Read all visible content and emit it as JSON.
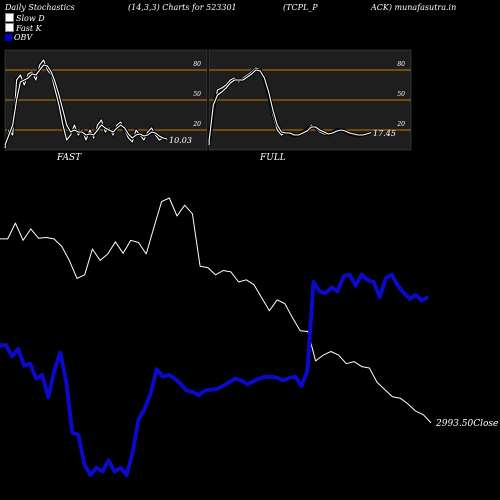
{
  "header": {
    "title": "Daily Stochastics",
    "params": "(14,3,3) Charts for 523301",
    "symbol_a": "(TCPL_P",
    "symbol_b": "ACK) munafasutra.in"
  },
  "legend": [
    {
      "label": "Slow  D",
      "color": "#ffffff"
    },
    {
      "label": "Fast K",
      "color": "#ffffff"
    },
    {
      "label": "OBV",
      "color": "#0000cc"
    }
  ],
  "colors": {
    "background": "#000000",
    "panel": "#1e1e1e",
    "ref_line": "#c87800",
    "price": "#ffffff",
    "obv": "#0a0ac8"
  },
  "chart_data": [
    {
      "type": "line",
      "title": "FAST",
      "ylim": [
        0,
        100
      ],
      "ticks": [
        20,
        50,
        80
      ],
      "ref_lines": [
        20,
        50,
        80
      ],
      "last_value_label": "10.03",
      "series": [
        {
          "name": "Fast K",
          "values": [
            2,
            20,
            15,
            70,
            75,
            65,
            76,
            78,
            70,
            85,
            90,
            80,
            75,
            60,
            45,
            25,
            10,
            15,
            25,
            15,
            20,
            10,
            20,
            12,
            25,
            30,
            18,
            22,
            15,
            25,
            28,
            20,
            12,
            8,
            20,
            15,
            10,
            18,
            22,
            15,
            10,
            12,
            10
          ]
        },
        {
          "name": "Slow  D",
          "values": [
            5,
            15,
            25,
            50,
            68,
            70,
            72,
            76,
            75,
            80,
            85,
            84,
            78,
            68,
            55,
            40,
            25,
            18,
            20,
            18,
            18,
            15,
            16,
            15,
            20,
            25,
            22,
            20,
            18,
            22,
            25,
            22,
            16,
            12,
            15,
            16,
            14,
            15,
            18,
            17,
            14,
            12,
            11
          ]
        }
      ]
    },
    {
      "type": "line",
      "title": "FULL",
      "ylim": [
        0,
        100
      ],
      "ticks": [
        20,
        50,
        80
      ],
      "ref_lines": [
        20,
        50,
        80
      ],
      "last_value_label": "17.45",
      "series": [
        {
          "name": "Slow  D",
          "values": [
            5,
            40,
            60,
            62,
            65,
            70,
            72,
            68,
            72,
            75,
            78,
            82,
            80,
            70,
            55,
            35,
            20,
            15,
            18,
            16,
            14,
            15,
            18,
            20,
            25,
            22,
            18,
            16,
            15,
            18,
            20,
            20,
            18,
            16,
            15,
            14,
            15,
            16,
            17
          ]
        },
        {
          "name": "Fast K",
          "values": [
            8,
            45,
            55,
            58,
            62,
            67,
            70,
            70,
            70,
            73,
            76,
            80,
            79,
            72,
            58,
            40,
            25,
            18,
            17,
            17,
            15,
            15,
            17,
            19,
            23,
            23,
            20,
            18,
            16,
            17,
            19,
            20,
            19,
            17,
            16,
            15,
            15,
            16,
            17.45
          ]
        }
      ]
    },
    {
      "type": "line",
      "title": "",
      "last_value_label": "2993.50",
      "last_value_suffix": "Close",
      "series": [
        {
          "name": "Close",
          "values": [
            3250,
            3250,
            3272,
            3248,
            3264,
            3251,
            3252,
            3250,
            3240,
            3220,
            3195,
            3200,
            3236,
            3220,
            3229,
            3246,
            3230,
            3248,
            3245,
            3229,
            3266,
            3302,
            3307,
            3282,
            3297,
            3285,
            3212,
            3210,
            3200,
            3206,
            3204,
            3190,
            3193,
            3186,
            3168,
            3150,
            3165,
            3160,
            3140,
            3122,
            3121,
            3080,
            3088,
            3093,
            3088,
            3076,
            3079,
            3072,
            3070,
            3050,
            3040,
            3030,
            3028,
            3020,
            3010,
            3005,
            2993.5
          ]
        },
        {
          "name": "OBV",
          "values": [
            -310,
            -310,
            -340,
            -320,
            -365,
            -360,
            -400,
            -390,
            -450,
            -380,
            -330,
            -410,
            -545,
            -552,
            -630,
            -660,
            -640,
            -650,
            -620,
            -650,
            -640,
            -660,
            -600,
            -510,
            -482,
            -440,
            -375,
            -395,
            -390,
            -400,
            -415,
            -433,
            -436,
            -445,
            -432,
            -430,
            -428,
            -420,
            -410,
            -400,
            -405,
            -415,
            -408,
            -400,
            -395,
            -395,
            -398,
            -405,
            -398,
            -395,
            -420,
            -380,
            -140,
            -165,
            -170,
            -155,
            -165,
            -125,
            -120,
            -150,
            -120,
            -135,
            -140,
            -180,
            -130,
            -120,
            -150,
            -170,
            -185,
            -175,
            -190,
            -180
          ]
        }
      ]
    }
  ]
}
